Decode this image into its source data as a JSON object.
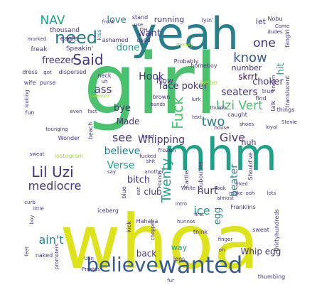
{
  "palette": {
    "background": "#ffffff",
    "yellow": "#dde318",
    "lime": "#a0da39",
    "green": "#4ac16d",
    "teal": "#1fa187",
    "cyan": "#277f8e",
    "blue": "#365c8d",
    "indigo": "#46327e",
    "purple": "#440154"
  },
  "words": [
    {
      "text": "girl",
      "color": "green"
    },
    {
      "text": "whoa",
      "color": "yellow"
    },
    {
      "text": "yeah",
      "color": "cyan"
    },
    {
      "text": "mhm",
      "color": "teal"
    },
    {
      "text": "wanted",
      "color": "blue"
    },
    {
      "text": "believe",
      "color": "blue"
    },
    {
      "text": "need",
      "color": "cyan"
    },
    {
      "text": "NAV",
      "color": "teal"
    },
    {
      "text": "Said",
      "color": "indigo"
    },
    {
      "text": "Lil Uzi",
      "color": "indigo"
    },
    {
      "text": "know",
      "color": "blue"
    },
    {
      "text": "Uzi Vert",
      "color": "green"
    },
    {
      "text": "two",
      "color": "cyan"
    },
    {
      "text": "Fuck",
      "color": "green"
    },
    {
      "text": "Whipping",
      "color": "indigo"
    },
    {
      "text": "Give",
      "color": "indigo"
    },
    {
      "text": "Twenty",
      "color": "teal"
    },
    {
      "text": "mediocre",
      "color": "indigo"
    },
    {
      "text": "ain't",
      "color": "cyan"
    },
    {
      "text": "freezer",
      "color": "indigo"
    },
    {
      "text": "one",
      "color": "indigo"
    },
    {
      "text": "choker",
      "color": "indigo"
    },
    {
      "text": "seaters",
      "color": "indigo"
    },
    {
      "text": "see",
      "color": "indigo"
    },
    {
      "text": "believe",
      "color": "cyan"
    },
    {
      "text": "Verse",
      "color": "teal"
    },
    {
      "text": "bitch",
      "color": "indigo"
    },
    {
      "text": "hurt",
      "color": "indigo"
    },
    {
      "text": "ice",
      "color": "teal"
    },
    {
      "text": "egg",
      "color": "cyan"
    },
    {
      "text": "beater",
      "color": "cyan"
    },
    {
      "text": "Whip egg",
      "color": "indigo"
    },
    {
      "text": "hit",
      "color": "teal"
    },
    {
      "text": "Hook",
      "color": "indigo"
    },
    {
      "text": "face poker",
      "color": "indigo"
    },
    {
      "text": "love",
      "color": "cyan"
    },
    {
      "text": "want",
      "color": "indigo"
    },
    {
      "text": "done",
      "color": "teal"
    },
    {
      "text": "ass",
      "color": "indigo"
    },
    {
      "text": "bye",
      "color": "indigo"
    },
    {
      "text": "Made",
      "color": "indigo"
    },
    {
      "text": "running",
      "color": "indigo"
    },
    {
      "text": "number",
      "color": "indigo"
    },
    {
      "text": "skrrt",
      "color": "purple"
    },
    {
      "text": "Now",
      "color": "indigo"
    },
    {
      "text": "club",
      "color": "indigo"
    },
    {
      "text": "back",
      "color": "indigo"
    },
    {
      "text": "way",
      "color": "teal"
    },
    {
      "text": "huh",
      "color": "indigo"
    },
    {
      "text": "let",
      "color": "indigo"
    },
    {
      "text": "thousand",
      "color": "indigo"
    },
    {
      "text": "eagle",
      "color": "indigo"
    },
    {
      "text": "freak",
      "color": "indigo"
    },
    {
      "text": "Speakin'",
      "color": "indigo"
    },
    {
      "text": "murked",
      "color": "indigo"
    },
    {
      "text": "kiss",
      "color": "cyan"
    },
    {
      "text": "front",
      "color": "indigo"
    },
    {
      "text": "stand",
      "color": "indigo"
    },
    {
      "text": "use",
      "color": "indigo"
    },
    {
      "text": "ashamed",
      "color": "indigo"
    },
    {
      "text": "used",
      "color": "indigo"
    },
    {
      "text": "fangirl",
      "color": "indigo"
    },
    {
      "text": "Nobu",
      "color": "indigo"
    },
    {
      "text": "dudes",
      "color": "indigo"
    },
    {
      "text": "Come",
      "color": "indigo"
    },
    {
      "text": "lyin'",
      "color": "indigo"
    },
    {
      "text": "money",
      "color": "lime"
    },
    {
      "text": "Probably",
      "color": "indigo"
    },
    {
      "text": "homeboy",
      "color": "indigo"
    },
    {
      "text": "better",
      "color": "lime"
    },
    {
      "text": "translucent",
      "color": "indigo"
    },
    {
      "text": "known",
      "color": "indigo"
    },
    {
      "text": "dress",
      "color": "indigo"
    },
    {
      "text": "got",
      "color": "indigo"
    },
    {
      "text": "dispersed",
      "color": "indigo"
    },
    {
      "text": "neck",
      "color": "indigo"
    },
    {
      "text": "wife",
      "color": "indigo"
    },
    {
      "text": "purse",
      "color": "indigo"
    },
    {
      "text": "looking",
      "color": "indigo"
    },
    {
      "text": "fun",
      "color": "indigo"
    },
    {
      "text": "even",
      "color": "indigo"
    },
    {
      "text": "fact",
      "color": "indigo"
    },
    {
      "text": "sweater",
      "color": "lime"
    },
    {
      "text": "brown",
      "color": "indigo"
    },
    {
      "text": "bands",
      "color": "indigo"
    },
    {
      "text": "text",
      "color": "indigo"
    },
    {
      "text": "lurk",
      "color": "indigo"
    },
    {
      "text": "thumb",
      "color": "indigo"
    },
    {
      "text": "caught",
      "color": "indigo"
    },
    {
      "text": "find",
      "color": "indigo"
    },
    {
      "text": "true",
      "color": "indigo"
    },
    {
      "text": "talk",
      "color": "indigo"
    },
    {
      "text": "things",
      "color": "indigo"
    },
    {
      "text": "shoes",
      "color": "indigo"
    },
    {
      "text": "house",
      "color": "indigo"
    },
    {
      "text": "loyal",
      "color": "indigo"
    },
    {
      "text": "tounging",
      "color": "indigo"
    },
    {
      "text": "Wonder",
      "color": "indigo"
    },
    {
      "text": "sweat",
      "color": "indigo"
    },
    {
      "text": "head",
      "color": "indigo"
    },
    {
      "text": "beach",
      "color": "indigo"
    },
    {
      "text": "Instagram",
      "color": "lime"
    },
    {
      "text": "frozen",
      "color": "indigo"
    },
    {
      "text": "fucked",
      "color": "indigo"
    },
    {
      "text": "Cartier",
      "color": "indigo"
    },
    {
      "text": "Louboutins",
      "color": "indigo"
    },
    {
      "text": "Should've",
      "color": "indigo"
    },
    {
      "text": "curb",
      "color": "indigo"
    },
    {
      "text": "little",
      "color": "indigo"
    },
    {
      "text": "boy",
      "color": "indigo"
    },
    {
      "text": "another",
      "color": "indigo"
    },
    {
      "text": "Found",
      "color": "indigo"
    },
    {
      "text": "White",
      "color": "indigo"
    },
    {
      "text": "Took",
      "color": "indigo"
    },
    {
      "text": "make",
      "color": "indigo"
    },
    {
      "text": "ooh",
      "color": "indigo"
    },
    {
      "text": "irked",
      "color": "indigo"
    },
    {
      "text": "lots",
      "color": "indigo"
    },
    {
      "text": "blue",
      "color": "indigo"
    },
    {
      "text": "eat",
      "color": "indigo"
    },
    {
      "text": "intro",
      "color": "indigo"
    },
    {
      "text": "almost",
      "color": "indigo"
    },
    {
      "text": "Franklins",
      "color": "indigo"
    },
    {
      "text": "first",
      "color": "indigo"
    },
    {
      "text": "iceberg",
      "color": "indigo"
    },
    {
      "text": "kick",
      "color": "indigo"
    },
    {
      "text": "Hahaha",
      "color": "indigo"
    },
    {
      "text": "chopper",
      "color": "indigo"
    },
    {
      "text": "hunnos",
      "color": "indigo"
    },
    {
      "text": "think",
      "color": "indigo"
    },
    {
      "text": "sweat",
      "color": "indigo"
    },
    {
      "text": "thirtyhundreds",
      "color": "indigo"
    },
    {
      "text": "finger",
      "color": "indigo"
    },
    {
      "text": "promoters",
      "color": "indigo"
    },
    {
      "text": "naked",
      "color": "indigo"
    },
    {
      "text": "feet",
      "color": "indigo"
    },
    {
      "text": "lens",
      "color": "indigo"
    },
    {
      "text": "thumbing",
      "color": "indigo"
    },
    {
      "text": "Uan",
      "color": "indigo"
    },
    {
      "text": "Prestos",
      "color": "indigo"
    },
    {
      "text": "fur",
      "color": "indigo"
    },
    {
      "text": "DH",
      "color": "indigo"
    },
    {
      "text": "say",
      "color": "indigo"
    },
    {
      "text": "shit",
      "color": "indigo"
    },
    {
      "text": "oh",
      "color": "indigo"
    },
    {
      "text": "uh",
      "color": "indigo"
    },
    {
      "text": "Stevie",
      "color": "indigo"
    }
  ]
}
